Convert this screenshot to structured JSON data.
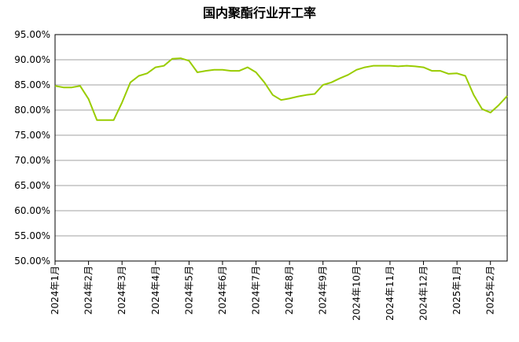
{
  "chart_data": {
    "type": "line",
    "title": "国内聚酯行业开工率",
    "categories": [
      "2024年1月",
      null,
      null,
      null,
      "2024年2月",
      null,
      null,
      null,
      "2024年3月",
      null,
      null,
      null,
      "2024年4月",
      null,
      null,
      null,
      "2024年5月",
      null,
      null,
      null,
      "2024年6月",
      null,
      null,
      null,
      "2024年7月",
      null,
      null,
      null,
      "2024年8月",
      null,
      null,
      null,
      "2024年9月",
      null,
      null,
      null,
      "2024年10月",
      null,
      null,
      null,
      "2024年11月",
      null,
      null,
      null,
      "2024年12月",
      null,
      null,
      null,
      "2025年1月",
      null,
      null,
      null,
      "2025年2月",
      null,
      null
    ],
    "values": [
      84.8,
      84.5,
      84.5,
      84.8,
      82.2,
      78,
      78,
      78,
      81.5,
      85.5,
      86.8,
      87.3,
      88.5,
      88.8,
      90.2,
      90.3,
      89.8,
      87.5,
      87.8,
      88,
      88,
      87.8,
      87.8,
      88.5,
      87.5,
      85.5,
      83,
      82,
      82.3,
      82.7,
      83,
      83.2,
      85,
      85.5,
      86.3,
      87,
      88,
      88.5,
      88.8,
      88.8,
      88.8,
      88.7,
      88.8,
      88.7,
      88.5,
      87.8,
      87.8,
      87.2,
      87.3,
      86.8,
      83,
      80.2,
      79.5,
      81,
      82.8
    ],
    "color": "#99cc00",
    "ylim": [
      50,
      95
    ],
    "yticks": [
      {
        "value": 50,
        "label": "50.00%"
      },
      {
        "value": 55,
        "label": "55.00%"
      },
      {
        "value": 60,
        "label": "60.00%"
      },
      {
        "value": 65,
        "label": "65.00%"
      },
      {
        "value": 70,
        "label": "70.00%"
      },
      {
        "value": 75,
        "label": "75.00%"
      },
      {
        "value": 80,
        "label": "80.00%"
      },
      {
        "value": 85,
        "label": "85.00%"
      },
      {
        "value": 90,
        "label": "90.00%"
      },
      {
        "value": 95,
        "label": "95.00%"
      }
    ],
    "grid": true
  }
}
